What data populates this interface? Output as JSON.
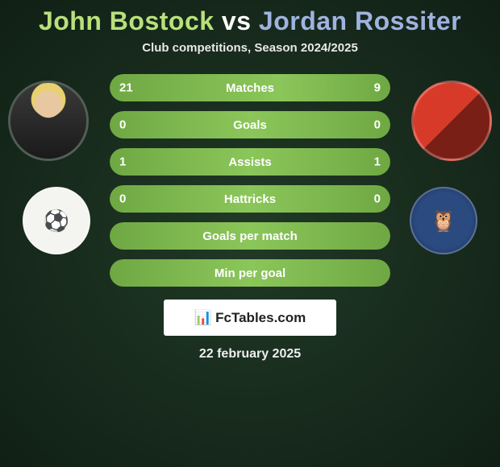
{
  "title": {
    "player1": "John Bostock",
    "vs": "vs",
    "player2": "Jordan Rossiter"
  },
  "subtitle": "Club competitions, Season 2024/2025",
  "colors": {
    "player1_accent": "#b9e07a",
    "vs_color": "#ffffff",
    "player2_accent": "#9fb3e0",
    "bar_fill": "#7db94f",
    "background": "#1a2d1f"
  },
  "stats": [
    {
      "label": "Matches",
      "p1": "21",
      "p2": "9",
      "p1_width_pct": 60,
      "p2_width_pct": 40
    },
    {
      "label": "Goals",
      "p1": "0",
      "p2": "0",
      "p1_width_pct": 50,
      "p2_width_pct": 50
    },
    {
      "label": "Assists",
      "p1": "1",
      "p2": "1",
      "p1_width_pct": 50,
      "p2_width_pct": 50
    },
    {
      "label": "Hattricks",
      "p1": "0",
      "p2": "0",
      "p1_width_pct": 50,
      "p2_width_pct": 50
    },
    {
      "label": "Goals per match",
      "p1": "",
      "p2": "",
      "p1_width_pct": 50,
      "p2_width_pct": 50
    },
    {
      "label": "Min per goal",
      "p1": "",
      "p2": "",
      "p1_width_pct": 50,
      "p2_width_pct": 50
    }
  ],
  "brand": "FcTables.com",
  "date": "22 february 2025",
  "badges": {
    "left_glyph": "⚽",
    "right_glyph": "🦉"
  }
}
